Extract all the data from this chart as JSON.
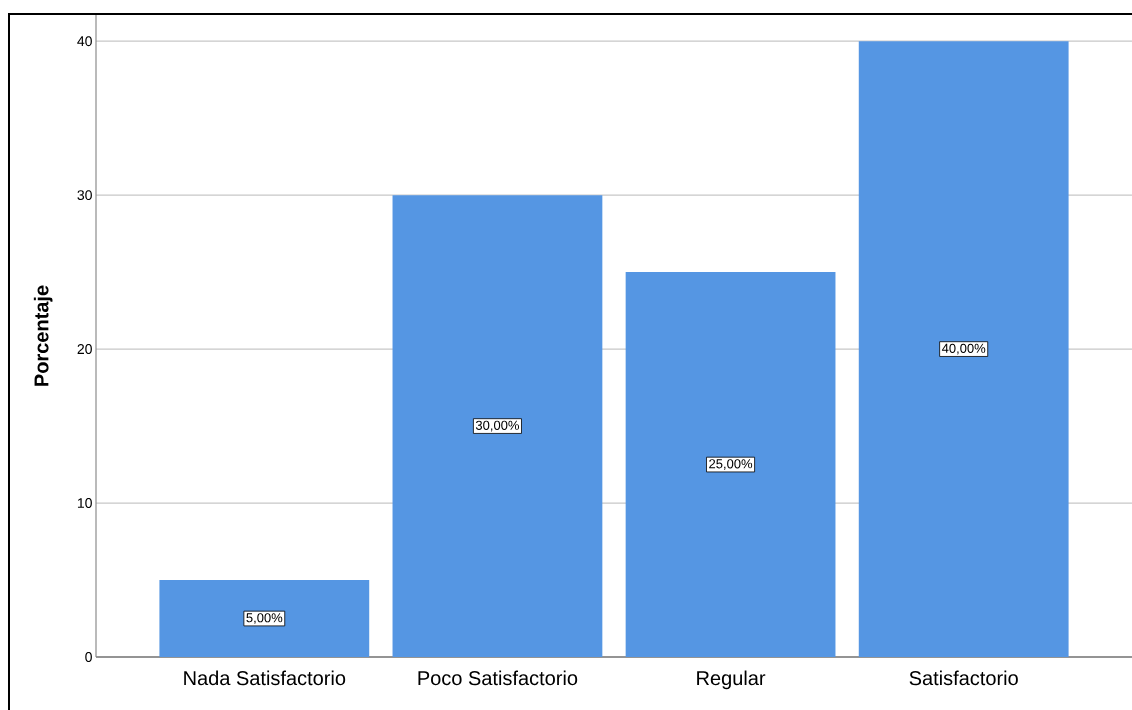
{
  "chart_data": {
    "type": "bar",
    "ylabel": "Porcentaje",
    "categories": [
      "Nada Satisfactorio",
      "Poco Satisfactorio",
      "Regular",
      "Satisfactorio"
    ],
    "values": [
      5,
      30,
      25,
      40
    ],
    "color": "#5596e3",
    "value_labels": [
      "5,00%",
      "30,00%",
      "25,00%",
      "40,00%"
    ],
    "ylim": [
      0,
      41.7
    ],
    "yticks": [
      0,
      10,
      20,
      30,
      40
    ],
    "grid": "y"
  }
}
